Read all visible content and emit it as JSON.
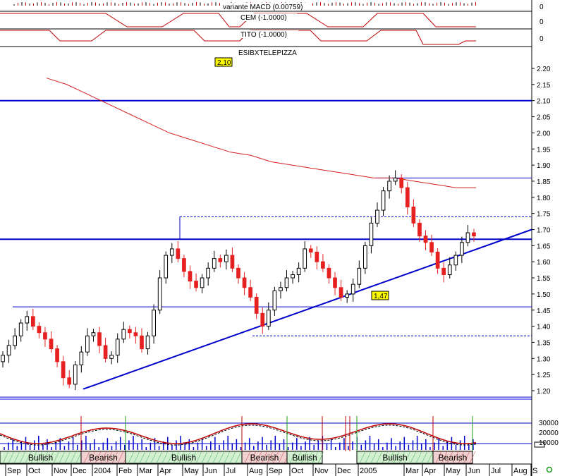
{
  "chart_data": {
    "type": "candlestick",
    "symbol": "ESIBXTELEPIZZA",
    "price_axis": {
      "ylim": [
        1.15,
        2.22
      ],
      "ticks": [
        "2.20",
        "2.15",
        "2.10",
        "2.05",
        "2.00",
        "1.95",
        "1.90",
        "1.85",
        "1.80",
        "1.75",
        "1.70",
        "1.65",
        "1.60",
        "1.55",
        "1.50",
        "1.45",
        "1.40",
        "1.35",
        "1.30",
        "1.25",
        "1.20"
      ]
    },
    "time_axis": {
      "labels": [
        "Sep",
        "Oct",
        "Nov",
        "Dec",
        "2004",
        "Feb",
        "Mar",
        "Apr",
        "May",
        "Jun",
        "Jul",
        "Aug",
        "Sep",
        "Oct",
        "Nov",
        "Dec",
        "2005",
        "Mar",
        "Apr",
        "May",
        "Jun",
        "Jul",
        "Aug",
        "S"
      ]
    },
    "callouts": [
      {
        "label": "2,10",
        "value": 2.1
      },
      {
        "label": "1,47",
        "value": 1.47
      }
    ],
    "levels": {
      "support_high": 2.1,
      "resistance": 1.67,
      "support": 1.46,
      "low_line": 1.18,
      "dashed_top": 1.74,
      "dashed_bottom": 1.37,
      "short_line": 1.86
    },
    "trendline": {
      "from": {
        "date": "Dec 2003",
        "price": 1.205
      },
      "to": {
        "date": "Jul 2005",
        "price": 1.7
      }
    },
    "moving_average": [
      2.17,
      2.15,
      2.12,
      2.09,
      2.06,
      2.03,
      2.0,
      1.98,
      1.96,
      1.94,
      1.93,
      1.91,
      1.9,
      1.89,
      1.88,
      1.87,
      1.86,
      1.86,
      1.85,
      1.84,
      1.83,
      1.83
    ],
    "closes": [
      1.31,
      1.34,
      1.37,
      1.41,
      1.43,
      1.4,
      1.38,
      1.36,
      1.33,
      1.29,
      1.24,
      1.22,
      1.28,
      1.32,
      1.37,
      1.38,
      1.34,
      1.3,
      1.31,
      1.36,
      1.39,
      1.38,
      1.37,
      1.33,
      1.37,
      1.45,
      1.55,
      1.62,
      1.64,
      1.61,
      1.57,
      1.54,
      1.52,
      1.55,
      1.58,
      1.61,
      1.6,
      1.62,
      1.58,
      1.55,
      1.52,
      1.49,
      1.44,
      1.4,
      1.45,
      1.51,
      1.52,
      1.55,
      1.56,
      1.58,
      1.64,
      1.63,
      1.6,
      1.58,
      1.55,
      1.52,
      1.49,
      1.5,
      1.53,
      1.58,
      1.65,
      1.72,
      1.76,
      1.82,
      1.85,
      1.86,
      1.83,
      1.77,
      1.72,
      1.68,
      1.66,
      1.63,
      1.58,
      1.56,
      1.59,
      1.62,
      1.66,
      1.69,
      1.68
    ],
    "indicators": [
      {
        "name": "variante MACD",
        "value": "(0.00759)",
        "axis_label": "0"
      },
      {
        "name": "CEM",
        "value": "(-1.0000)",
        "axis_label": "0"
      },
      {
        "name": "TITO",
        "value": "(-1.0000)",
        "axis_label": "0"
      }
    ],
    "volume_axis": {
      "ticks": [
        "30000",
        "20000",
        "10000"
      ]
    },
    "trend_bands": [
      "Bullish",
      "Bearish",
      "Bullish",
      "Bearish",
      "Bullish",
      "Bullish",
      "Bearish"
    ]
  },
  "colors": {
    "up": "#ffffff",
    "down": "#e62020",
    "level_line": "#0000cc",
    "moving_average": "#d42020",
    "callout": "#ffff00",
    "bullish_band": "#d0f0d0",
    "bearish_band": "#f0d0d0"
  },
  "status_icon": "refresh-circle-icon"
}
